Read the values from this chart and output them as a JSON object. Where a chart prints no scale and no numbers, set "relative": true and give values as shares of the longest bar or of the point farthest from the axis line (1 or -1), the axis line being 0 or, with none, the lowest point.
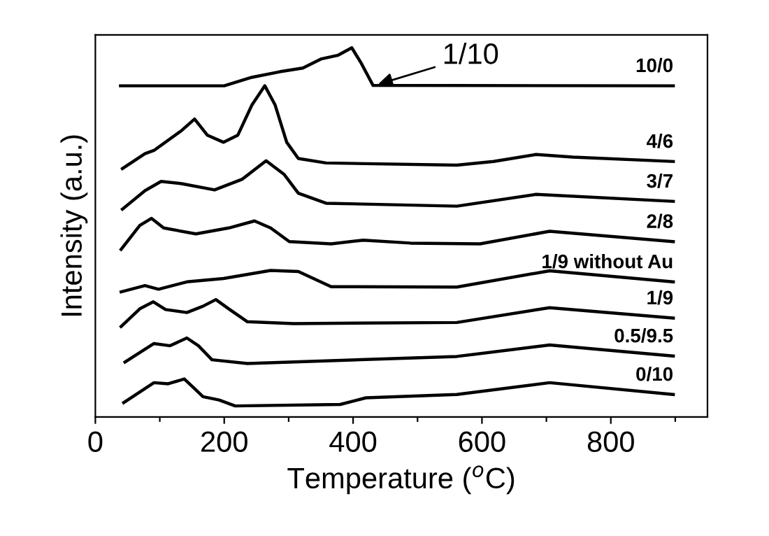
{
  "chart_data": {
    "type": "line",
    "relative": true,
    "xlabel": "Temperature ($^{o}$C)",
    "ylabel": "Intensity (a.u.)",
    "xlim": [
      0,
      950
    ],
    "xticks": [
      0,
      {
        "value": 100,
        "label": null
      },
      200,
      {
        "value": 300,
        "label": null
      },
      400,
      {
        "value": 500,
        "label": null
      },
      600,
      {
        "value": 700,
        "label": null
      },
      800,
      {
        "value": 900,
        "label": null
      }
    ],
    "tick_labels": "x",
    "grid": false,
    "legend": false,
    "marker": "none",
    "line_style": "solid",
    "annotations": [
      {
        "text": "1/10",
        "x": 433,
        "y": 0.898
      }
    ],
    "series": [
      {
        "name": "10/0",
        "color": "#000000",
        "x": [
          39,
          200,
          243,
          286,
          322,
          351,
          377,
          398,
          413,
          431,
          897
        ],
        "values": [
          0.897,
          0.897,
          0.92,
          0.935,
          0.945,
          0.97,
          0.98,
          1.0,
          0.957,
          0.898,
          0.897
        ]
      },
      {
        "name": "4/6",
        "color": "#000000",
        "x": [
          42,
          77,
          91,
          134,
          154,
          174,
          199,
          221,
          243,
          263,
          279,
          297,
          315,
          358,
          561,
          618,
          684,
          741,
          897
        ],
        "values": [
          0.673,
          0.713,
          0.722,
          0.776,
          0.807,
          0.763,
          0.744,
          0.763,
          0.845,
          0.897,
          0.845,
          0.744,
          0.7,
          0.688,
          0.682,
          0.692,
          0.711,
          0.704,
          0.692
        ]
      },
      {
        "name": "3/7",
        "color": "#000000",
        "x": [
          42,
          77,
          102,
          134,
          185,
          228,
          265,
          293,
          315,
          358,
          561,
          684,
          897
        ],
        "values": [
          0.563,
          0.613,
          0.638,
          0.632,
          0.615,
          0.644,
          0.694,
          0.657,
          0.606,
          0.579,
          0.571,
          0.603,
          0.584
        ]
      },
      {
        "name": "2/8",
        "color": "#000000",
        "x": [
          40,
          69,
          87,
          106,
          156,
          207,
          247,
          272,
          301,
          366,
          416,
          489,
          597,
          705,
          897
        ],
        "values": [
          0.454,
          0.519,
          0.538,
          0.512,
          0.496,
          0.512,
          0.531,
          0.512,
          0.475,
          0.469,
          0.479,
          0.471,
          0.469,
          0.503,
          0.475
        ]
      },
      {
        "name": "1/9 without Au",
        "color": "#000000",
        "x": [
          40,
          77,
          98,
          142,
          199,
          272,
          315,
          366,
          561,
          705,
          897
        ],
        "values": [
          0.339,
          0.356,
          0.346,
          0.366,
          0.375,
          0.397,
          0.394,
          0.353,
          0.352,
          0.396,
          0.366
        ]
      },
      {
        "name": "1/9",
        "color": "#000000",
        "x": [
          40,
          69,
          90,
          109,
          142,
          167,
          187,
          207,
          236,
          308,
          561,
          705,
          897
        ],
        "values": [
          0.245,
          0.293,
          0.312,
          0.291,
          0.283,
          0.3,
          0.318,
          0.293,
          0.258,
          0.253,
          0.256,
          0.296,
          0.268
        ]
      },
      {
        "name": "0.5/9.5",
        "color": "#000000",
        "x": [
          46,
          91,
          116,
          142,
          160,
          181,
          236,
          561,
          705,
          897
        ],
        "values": [
          0.149,
          0.199,
          0.193,
          0.214,
          0.193,
          0.155,
          0.145,
          0.164,
          0.195,
          0.165
        ]
      },
      {
        "name": "0/10",
        "color": "#000000",
        "x": [
          44,
          91,
          113,
          138,
          152,
          167,
          192,
          217,
          380,
          420,
          561,
          705,
          897
        ],
        "values": [
          0.039,
          0.093,
          0.09,
          0.103,
          0.08,
          0.055,
          0.046,
          0.03,
          0.034,
          0.052,
          0.061,
          0.093,
          0.061
        ]
      }
    ]
  }
}
